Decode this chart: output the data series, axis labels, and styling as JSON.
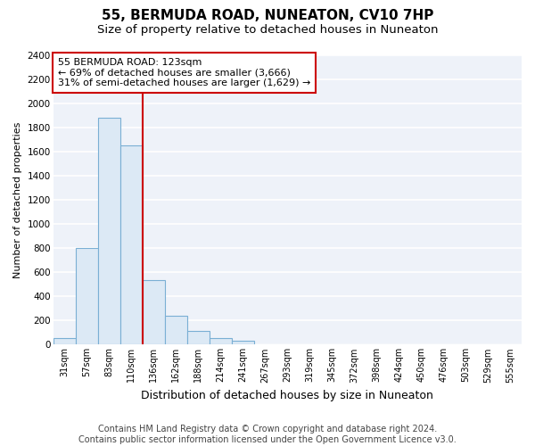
{
  "title": "55, BERMUDA ROAD, NUNEATON, CV10 7HP",
  "subtitle": "Size of property relative to detached houses in Nuneaton",
  "xlabel": "Distribution of detached houses by size in Nuneaton",
  "ylabel": "Number of detached properties",
  "categories": [
    "31sqm",
    "57sqm",
    "83sqm",
    "110sqm",
    "136sqm",
    "162sqm",
    "188sqm",
    "214sqm",
    "241sqm",
    "267sqm",
    "293sqm",
    "319sqm",
    "345sqm",
    "372sqm",
    "398sqm",
    "424sqm",
    "450sqm",
    "476sqm",
    "503sqm",
    "529sqm",
    "555sqm"
  ],
  "values": [
    55,
    800,
    1880,
    1650,
    535,
    240,
    110,
    57,
    35,
    0,
    0,
    0,
    0,
    0,
    0,
    0,
    0,
    0,
    0,
    0,
    0
  ],
  "bar_color": "#dce9f5",
  "bar_edge_color": "#7aafd4",
  "background_color": "#eef2f9",
  "grid_color": "#ffffff",
  "ylim": [
    0,
    2400
  ],
  "yticks": [
    0,
    200,
    400,
    600,
    800,
    1000,
    1200,
    1400,
    1600,
    1800,
    2000,
    2200,
    2400
  ],
  "property_line_color": "#cc0000",
  "annotation_line1": "55 BERMUDA ROAD: 123sqm",
  "annotation_line2": "← 69% of detached houses are smaller (3,666)",
  "annotation_line3": "31% of semi-detached houses are larger (1,629) →",
  "annotation_box_color": "#cc0000",
  "footer_line1": "Contains HM Land Registry data © Crown copyright and database right 2024.",
  "footer_line2": "Contains public sector information licensed under the Open Government Licence v3.0.",
  "title_fontsize": 11,
  "subtitle_fontsize": 9.5,
  "annotation_fontsize": 8,
  "footer_fontsize": 7,
  "ylabel_fontsize": 8,
  "xlabel_fontsize": 9,
  "xtick_fontsize": 7,
  "ytick_fontsize": 7.5
}
